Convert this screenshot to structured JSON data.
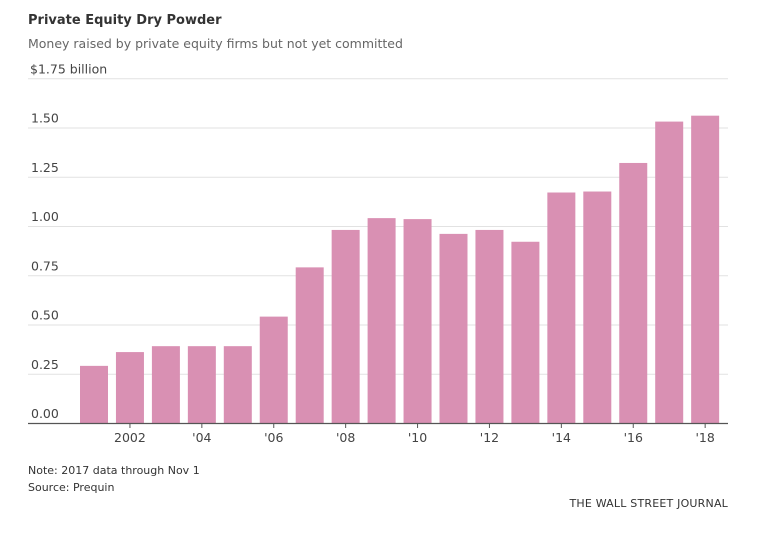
{
  "chart_data": {
    "type": "bar",
    "title": "Private Equity Dry Powder",
    "subtitle": "Money raised by private equity firms but not yet committed",
    "xlabel": "",
    "ylabel": "$ billion",
    "ylim": [
      0,
      1.75
    ],
    "yticks": [
      0,
      0.25,
      0.5,
      0.75,
      1.0,
      1.25,
      1.5,
      1.75
    ],
    "ytick_labels": [
      "0.00",
      "0.25",
      "0.50",
      "0.75",
      "1.00",
      "1.25",
      "1.50",
      "$1.75 billion"
    ],
    "categories": [
      2001,
      2002,
      2003,
      2004,
      2005,
      2006,
      2007,
      2008,
      2009,
      2010,
      2011,
      2012,
      2013,
      2014,
      2015,
      2016,
      2017,
      2018
    ],
    "xtick_labels": {
      "2002": "2002",
      "2004": "'04",
      "2006": "'06",
      "2008": "'08",
      "2010": "'10",
      "2012": "'12",
      "2014": "'14",
      "2016": "'16",
      "2018": "'18"
    },
    "values": [
      0.29,
      0.36,
      0.39,
      0.39,
      0.39,
      0.54,
      0.79,
      0.98,
      1.04,
      1.035,
      0.96,
      0.98,
      0.92,
      1.17,
      1.175,
      1.32,
      1.53,
      1.56
    ],
    "grid": true,
    "legend": "none",
    "bar_color": "#d990b3"
  },
  "footer": {
    "note": "Note: 2017 data through Nov 1",
    "source": "Source: Prequin",
    "brand": "THE WALL STREET JOURNAL"
  }
}
